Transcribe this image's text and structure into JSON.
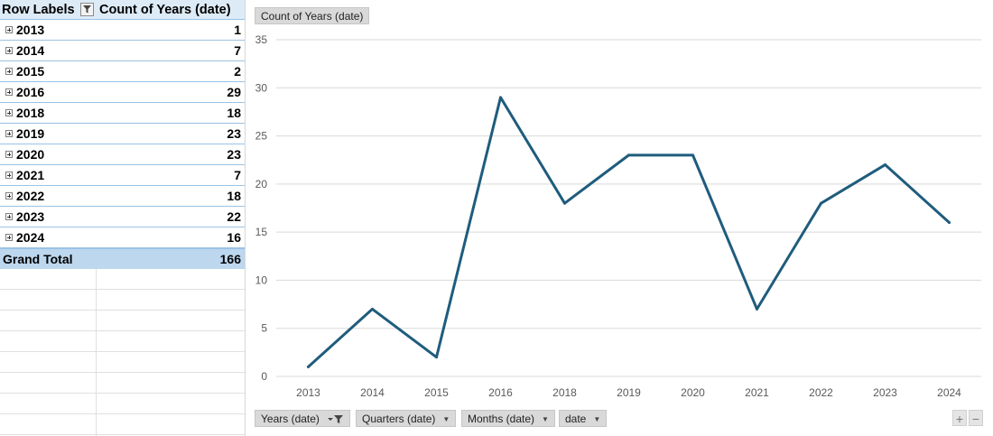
{
  "pivot": {
    "header": {
      "row_labels": "Row Labels",
      "value_field": "Count of Years (date)"
    },
    "rows": [
      {
        "label": "2013",
        "value": "1"
      },
      {
        "label": "2014",
        "value": "7"
      },
      {
        "label": "2015",
        "value": "2"
      },
      {
        "label": "2016",
        "value": "29"
      },
      {
        "label": "2018",
        "value": "18"
      },
      {
        "label": "2019",
        "value": "23"
      },
      {
        "label": "2020",
        "value": "23"
      },
      {
        "label": "2021",
        "value": "7"
      },
      {
        "label": "2022",
        "value": "18"
      },
      {
        "label": "2023",
        "value": "22"
      },
      {
        "label": "2024",
        "value": "16"
      }
    ],
    "total": {
      "label": "Grand Total",
      "value": "166"
    }
  },
  "chart_buttons": {
    "value_field": "Count of Years (date)",
    "axis_fields": [
      "Years (date)",
      "Quarters (date)",
      "Months (date)",
      "date"
    ],
    "zoom_in": "+",
    "zoom_out": "−"
  },
  "colors": {
    "line": "#1f5c7d",
    "header_fill": "#ddebf7",
    "total_fill": "#bdd7ee",
    "row_border": "#9bc2e6",
    "button_fill": "#d9d9d9"
  },
  "chart_data": {
    "type": "line",
    "categories": [
      "2013",
      "2014",
      "2015",
      "2016",
      "2018",
      "2019",
      "2020",
      "2021",
      "2022",
      "2023",
      "2024"
    ],
    "series": [
      {
        "values": [
          1,
          7,
          2,
          29,
          18,
          23,
          23,
          7,
          18,
          22,
          16
        ]
      }
    ],
    "ylim": [
      0,
      35
    ],
    "yticks": [
      0,
      5,
      10,
      15,
      20,
      25,
      30,
      35
    ],
    "grid": true,
    "legend": "none"
  }
}
